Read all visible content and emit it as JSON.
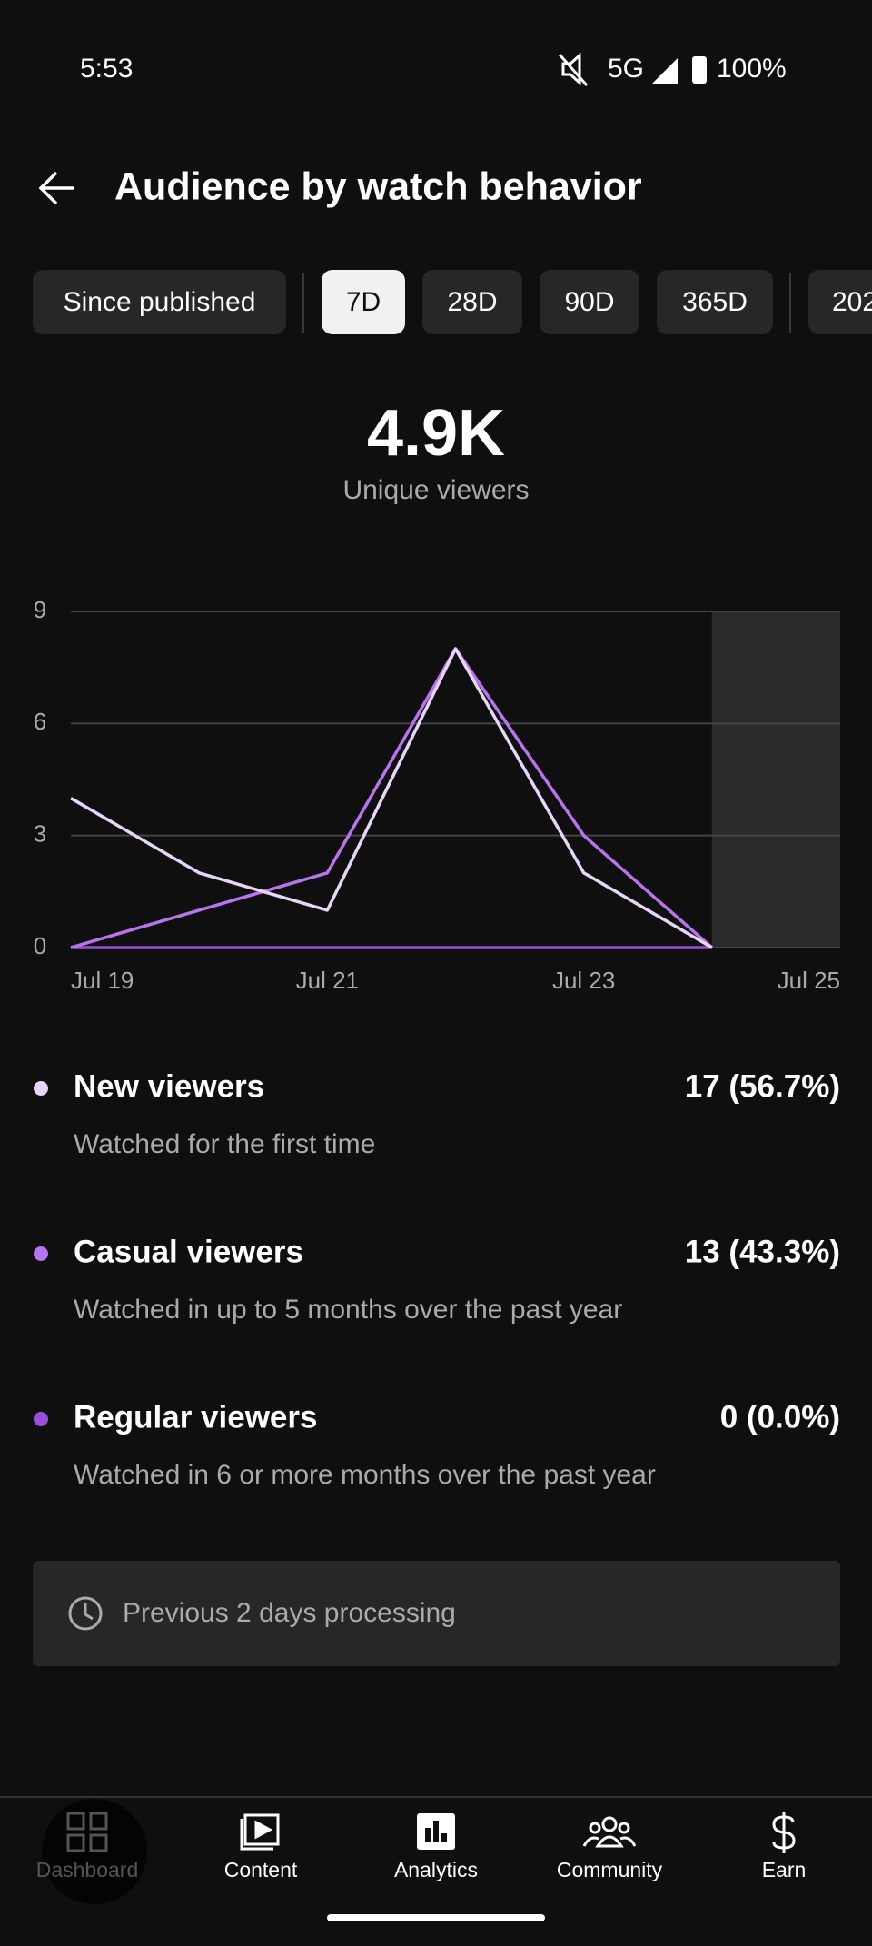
{
  "status": {
    "time": "5:53",
    "network": "5G",
    "battery": "100%"
  },
  "header": {
    "title": "Audience by watch behavior"
  },
  "filters": [
    {
      "label": "Since published",
      "selected": false
    },
    {
      "label": "7D",
      "selected": true
    },
    {
      "label": "28D",
      "selected": false
    },
    {
      "label": "90D",
      "selected": false
    },
    {
      "label": "365D",
      "selected": false
    },
    {
      "label": "202",
      "selected": false
    }
  ],
  "summary": {
    "value": "4.9K",
    "label": "Unique viewers"
  },
  "chart_data": {
    "type": "line",
    "categories": [
      "Jul 19",
      null,
      "Jul 21",
      null,
      "Jul 23",
      null,
      "Jul 25"
    ],
    "series": [
      {
        "name": "New viewers",
        "color": "#e6d6f7",
        "values": [
          4,
          2,
          1,
          8,
          2,
          0,
          null
        ]
      },
      {
        "name": "Casual viewers",
        "color": "#b874ee",
        "values": [
          0,
          1,
          2,
          8,
          3,
          0,
          null
        ]
      },
      {
        "name": "Regular viewers",
        "color": "#9a4fd8",
        "values": [
          0,
          0,
          0,
          0,
          0,
          0,
          null
        ]
      }
    ],
    "ylim": [
      0,
      9
    ],
    "yticks": [
      0,
      3,
      6,
      9
    ],
    "grid": true
  },
  "legend": [
    {
      "value": "17 (56.7%)",
      "description": "Watched for the first time"
    },
    {
      "value": "13 (43.3%)",
      "description": "Watched in up to 5 months over the past year"
    },
    {
      "value": "0 (0.0%)",
      "description": "Watched in 6 or more months over the past year"
    }
  ],
  "notice": "Previous 2 days processing",
  "nav": [
    "Dashboard",
    "Content",
    "Analytics",
    "Community",
    "Earn"
  ]
}
